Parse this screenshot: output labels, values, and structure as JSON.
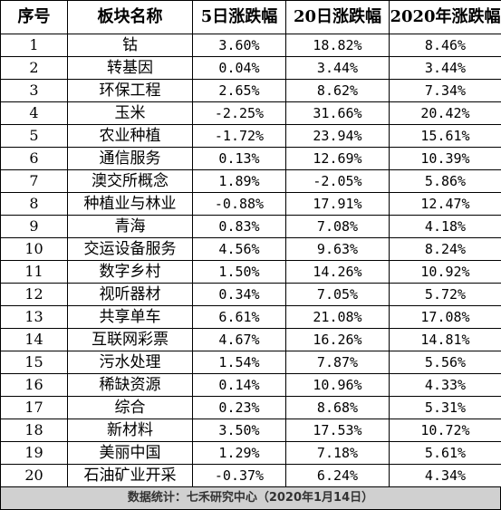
{
  "headers": [
    "序号",
    "板块名称",
    "5日涨跌幅",
    "20日涨跌幅",
    "2020年涨跌幅"
  ],
  "rows": [
    {
      "idx": "1",
      "name": "钴",
      "d5": "3.60%",
      "d20": "18.82%",
      "ytd": "8.46%"
    },
    {
      "idx": "2",
      "name": "转基因",
      "d5": "0.04%",
      "d20": "3.44%",
      "ytd": "3.44%"
    },
    {
      "idx": "3",
      "name": "环保工程",
      "d5": "2.65%",
      "d20": "8.62%",
      "ytd": "7.34%"
    },
    {
      "idx": "4",
      "name": "玉米",
      "d5": "-2.25%",
      "d20": "31.66%",
      "ytd": "20.42%"
    },
    {
      "idx": "5",
      "name": "农业种植",
      "d5": "-1.72%",
      "d20": "23.94%",
      "ytd": "15.61%"
    },
    {
      "idx": "6",
      "name": "通信服务",
      "d5": "0.13%",
      "d20": "12.69%",
      "ytd": "10.39%"
    },
    {
      "idx": "7",
      "name": "澳交所概念",
      "d5": "1.89%",
      "d20": "-2.05%",
      "ytd": "5.86%"
    },
    {
      "idx": "8",
      "name": "种植业与林业",
      "d5": "-0.88%",
      "d20": "17.91%",
      "ytd": "12.47%"
    },
    {
      "idx": "9",
      "name": "青海",
      "d5": "0.83%",
      "d20": "7.08%",
      "ytd": "4.18%"
    },
    {
      "idx": "10",
      "name": "交运设备服务",
      "d5": "4.56%",
      "d20": "9.63%",
      "ytd": "8.24%"
    },
    {
      "idx": "11",
      "name": "数字乡村",
      "d5": "1.50%",
      "d20": "14.26%",
      "ytd": "10.92%"
    },
    {
      "idx": "12",
      "name": "视听器材",
      "d5": "0.34%",
      "d20": "7.05%",
      "ytd": "5.72%"
    },
    {
      "idx": "13",
      "name": "共享单车",
      "d5": "6.61%",
      "d20": "21.08%",
      "ytd": "17.08%"
    },
    {
      "idx": "14",
      "name": "互联网彩票",
      "d5": "4.67%",
      "d20": "16.26%",
      "ytd": "14.81%"
    },
    {
      "idx": "15",
      "name": "污水处理",
      "d5": "1.54%",
      "d20": "7.87%",
      "ytd": "5.56%"
    },
    {
      "idx": "16",
      "name": "稀缺资源",
      "d5": "0.14%",
      "d20": "10.96%",
      "ytd": "4.33%"
    },
    {
      "idx": "17",
      "name": "综合",
      "d5": "0.23%",
      "d20": "8.68%",
      "ytd": "5.31%"
    },
    {
      "idx": "18",
      "name": "新材料",
      "d5": "3.50%",
      "d20": "17.53%",
      "ytd": "10.72%"
    },
    {
      "idx": "19",
      "name": "美丽中国",
      "d5": "1.29%",
      "d20": "7.18%",
      "ytd": "5.61%"
    },
    {
      "idx": "20",
      "name": "石油矿业开采",
      "d5": "-0.37%",
      "d20": "6.24%",
      "ytd": "4.34%"
    }
  ],
  "footer": "数据统计：七禾研究中心（2020年1月14日）",
  "colors": {
    "footer_bg": "#d0d0d0",
    "border": "#000000"
  }
}
